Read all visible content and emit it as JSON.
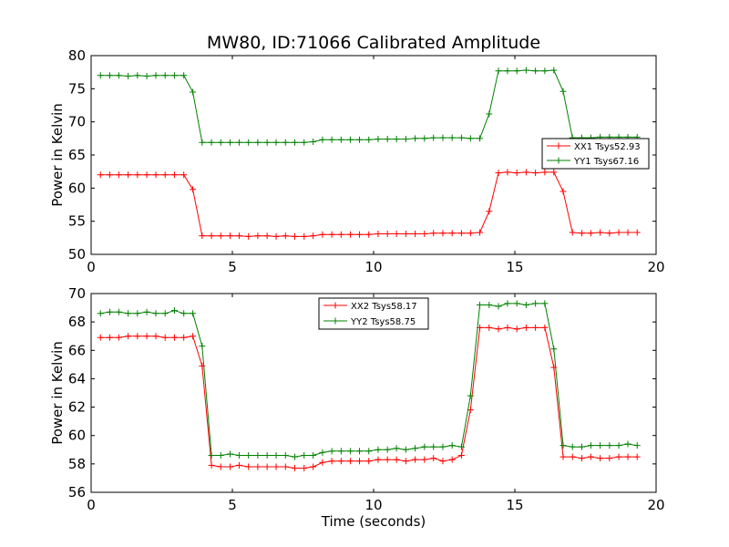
{
  "figure_title": "MW80, ID:71066 Calibrated Amplitude",
  "chart_data": [
    {
      "type": "line",
      "title": "",
      "xlabel": "",
      "ylabel": "Power in Kelvin",
      "xlim": [
        0,
        20
      ],
      "ylim": [
        50,
        80
      ],
      "xticks": [
        0,
        5,
        10,
        15,
        20
      ],
      "yticks": [
        50,
        55,
        60,
        65,
        70,
        75,
        80
      ],
      "grid": false,
      "legend_position": "right",
      "x": [
        0.33,
        0.66,
        0.98,
        1.31,
        1.64,
        1.97,
        2.29,
        2.62,
        2.95,
        3.28,
        3.6,
        3.93,
        4.26,
        4.59,
        4.92,
        5.24,
        5.57,
        5.9,
        6.23,
        6.55,
        6.88,
        7.21,
        7.54,
        7.86,
        8.19,
        8.52,
        8.85,
        9.18,
        9.5,
        9.83,
        10.16,
        10.49,
        10.81,
        11.14,
        11.47,
        11.8,
        12.12,
        12.45,
        12.78,
        13.11,
        13.43,
        13.76,
        14.09,
        14.42,
        14.74,
        15.07,
        15.4,
        15.73,
        16.06,
        16.38,
        16.71,
        17.04,
        17.37,
        17.69,
        18.02,
        18.35,
        18.68,
        19.0,
        19.33
      ],
      "series": [
        {
          "name": "XX1 Tsys52.93",
          "color": "#ff0000",
          "values": [
            62.0,
            62.0,
            62.0,
            62.0,
            62.0,
            62.0,
            62.0,
            62.0,
            62.0,
            62.0,
            59.8,
            52.8,
            52.8,
            52.8,
            52.8,
            52.8,
            52.7,
            52.8,
            52.8,
            52.7,
            52.8,
            52.7,
            52.7,
            52.8,
            53.0,
            53.0,
            53.0,
            53.0,
            53.0,
            53.0,
            53.1,
            53.1,
            53.1,
            53.1,
            53.1,
            53.1,
            53.2,
            53.2,
            53.2,
            53.2,
            53.2,
            53.3,
            56.5,
            62.3,
            62.4,
            62.3,
            62.4,
            62.3,
            62.4,
            62.4,
            59.5,
            53.3,
            53.2,
            53.2,
            53.3,
            53.2,
            53.3,
            53.3,
            53.3
          ]
        },
        {
          "name": "YY1 Tsys67.16",
          "color": "#008000",
          "values": [
            77.0,
            77.0,
            77.0,
            76.9,
            77.0,
            76.9,
            77.0,
            77.0,
            77.0,
            77.0,
            74.5,
            66.9,
            66.9,
            66.9,
            66.9,
            66.9,
            66.9,
            66.9,
            66.9,
            66.9,
            66.9,
            66.9,
            66.9,
            67.0,
            67.3,
            67.3,
            67.3,
            67.3,
            67.3,
            67.3,
            67.4,
            67.4,
            67.4,
            67.4,
            67.5,
            67.5,
            67.6,
            67.6,
            67.6,
            67.6,
            67.5,
            67.5,
            71.2,
            77.7,
            77.7,
            77.7,
            77.8,
            77.7,
            77.7,
            77.8,
            74.6,
            67.6,
            67.6,
            67.6,
            67.7,
            67.7,
            67.7,
            67.7,
            67.7
          ]
        }
      ]
    },
    {
      "type": "line",
      "title": "",
      "xlabel": "Time (seconds)",
      "ylabel": "Power in Kelvin",
      "xlim": [
        0,
        20
      ],
      "ylim": [
        56,
        70
      ],
      "xticks": [
        0,
        5,
        10,
        15,
        20
      ],
      "yticks": [
        56,
        58,
        60,
        62,
        64,
        66,
        68,
        70
      ],
      "grid": false,
      "legend_position": "top-center",
      "x": [
        0.33,
        0.66,
        0.98,
        1.31,
        1.64,
        1.97,
        2.29,
        2.62,
        2.95,
        3.28,
        3.6,
        3.93,
        4.26,
        4.59,
        4.92,
        5.24,
        5.57,
        5.9,
        6.23,
        6.55,
        6.88,
        7.21,
        7.54,
        7.86,
        8.19,
        8.52,
        8.85,
        9.18,
        9.5,
        9.83,
        10.16,
        10.49,
        10.81,
        11.14,
        11.47,
        11.8,
        12.12,
        12.45,
        12.78,
        13.11,
        13.43,
        13.76,
        14.09,
        14.42,
        14.74,
        15.07,
        15.4,
        15.73,
        16.06,
        16.38,
        16.71,
        17.04,
        17.37,
        17.69,
        18.02,
        18.35,
        18.68,
        19.0,
        19.33
      ],
      "series": [
        {
          "name": "XX2 Tsys58.17",
          "color": "#ff0000",
          "values": [
            66.9,
            66.9,
            66.9,
            67.0,
            67.0,
            67.0,
            67.0,
            66.9,
            66.9,
            66.9,
            67.0,
            64.9,
            57.9,
            57.8,
            57.8,
            57.9,
            57.8,
            57.8,
            57.8,
            57.8,
            57.8,
            57.7,
            57.7,
            57.8,
            58.1,
            58.2,
            58.2,
            58.2,
            58.2,
            58.2,
            58.3,
            58.3,
            58.3,
            58.2,
            58.3,
            58.3,
            58.4,
            58.2,
            58.3,
            58.6,
            61.8,
            67.6,
            67.6,
            67.5,
            67.6,
            67.5,
            67.6,
            67.6,
            67.6,
            64.8,
            58.5,
            58.5,
            58.4,
            58.5,
            58.4,
            58.4,
            58.5,
            58.5,
            58.5
          ]
        },
        {
          "name": "YY2 Tsys58.75",
          "color": "#008000",
          "values": [
            68.6,
            68.7,
            68.7,
            68.6,
            68.6,
            68.7,
            68.6,
            68.6,
            68.8,
            68.6,
            68.6,
            66.3,
            58.6,
            58.6,
            58.7,
            58.6,
            58.6,
            58.6,
            58.6,
            58.6,
            58.6,
            58.5,
            58.6,
            58.6,
            58.8,
            58.9,
            58.9,
            58.9,
            58.9,
            58.9,
            59.0,
            59.0,
            59.1,
            59.0,
            59.1,
            59.2,
            59.2,
            59.2,
            59.3,
            59.2,
            62.8,
            69.2,
            69.2,
            69.1,
            69.3,
            69.3,
            69.2,
            69.3,
            69.3,
            66.1,
            59.3,
            59.2,
            59.2,
            59.3,
            59.3,
            59.3,
            59.3,
            59.4,
            59.3
          ]
        }
      ]
    }
  ]
}
